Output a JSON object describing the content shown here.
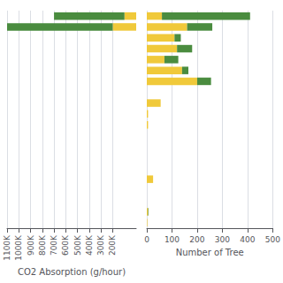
{
  "chart_data": [
    {
      "type": "bar",
      "orientation": "horizontal",
      "stacked": true,
      "grid": true,
      "tick_labels": "x",
      "xlabel": "CO2 Absorption (g/hour)",
      "categories": [
        null,
        null,
        null,
        null,
        null,
        null,
        null,
        null,
        null,
        null,
        null,
        null,
        null,
        null,
        null,
        null,
        null,
        null,
        null,
        null
      ],
      "series": [
        {
          "color": "#f0c93a",
          "values": [
            0,
            0,
            0,
            0,
            0,
            0,
            0,
            0,
            0,
            0,
            0,
            0,
            0,
            0,
            0,
            0,
            0,
            0,
            200000,
            100000
          ]
        },
        {
          "color": "#4a8c3f",
          "values": [
            0,
            0,
            0,
            0,
            0,
            0,
            0,
            0,
            0,
            0,
            0,
            0,
            0,
            0,
            0,
            0,
            0,
            0,
            900000,
            600000
          ]
        }
      ],
      "xlim": [
        1100000,
        0
      ],
      "xticks": [
        {
          "value": 200000,
          "label": "200K"
        },
        {
          "value": 300000,
          "label": "300K"
        },
        {
          "value": 400000,
          "label": "400K"
        },
        {
          "value": 500000,
          "label": "500K"
        },
        {
          "value": 600000,
          "label": "600K"
        },
        {
          "value": 700000,
          "label": "700K"
        },
        {
          "value": 800000,
          "label": "800K"
        },
        {
          "value": 900000,
          "label": "900K"
        },
        {
          "value": 1000000,
          "label": "1000K"
        },
        {
          "value": 1100000,
          "label": "1100K"
        }
      ]
    },
    {
      "type": "bar",
      "orientation": "horizontal",
      "stacked": true,
      "grid": true,
      "tick_labels": "x",
      "xlabel": "Number of Tree",
      "categories": [
        null,
        null,
        null,
        null,
        null,
        null,
        null,
        null,
        null,
        null,
        null,
        null,
        null,
        null,
        null,
        null,
        null,
        null,
        null,
        null
      ],
      "series": [
        {
          "color": "#f0c93a",
          "values": [
            2,
            5,
            0,
            0,
            25,
            0,
            0,
            0,
            0,
            5,
            5,
            55,
            0,
            200,
            140,
            70,
            120,
            110,
            160,
            60
          ]
        },
        {
          "color": "#4a8c3f",
          "values": [
            0,
            2,
            0,
            0,
            0,
            0,
            0,
            0,
            0,
            0,
            0,
            0,
            0,
            55,
            25,
            55,
            60,
            25,
            100,
            350
          ]
        }
      ],
      "xlim": [
        0,
        500
      ],
      "xticks": [
        0,
        100,
        200,
        300,
        400,
        500
      ]
    }
  ]
}
